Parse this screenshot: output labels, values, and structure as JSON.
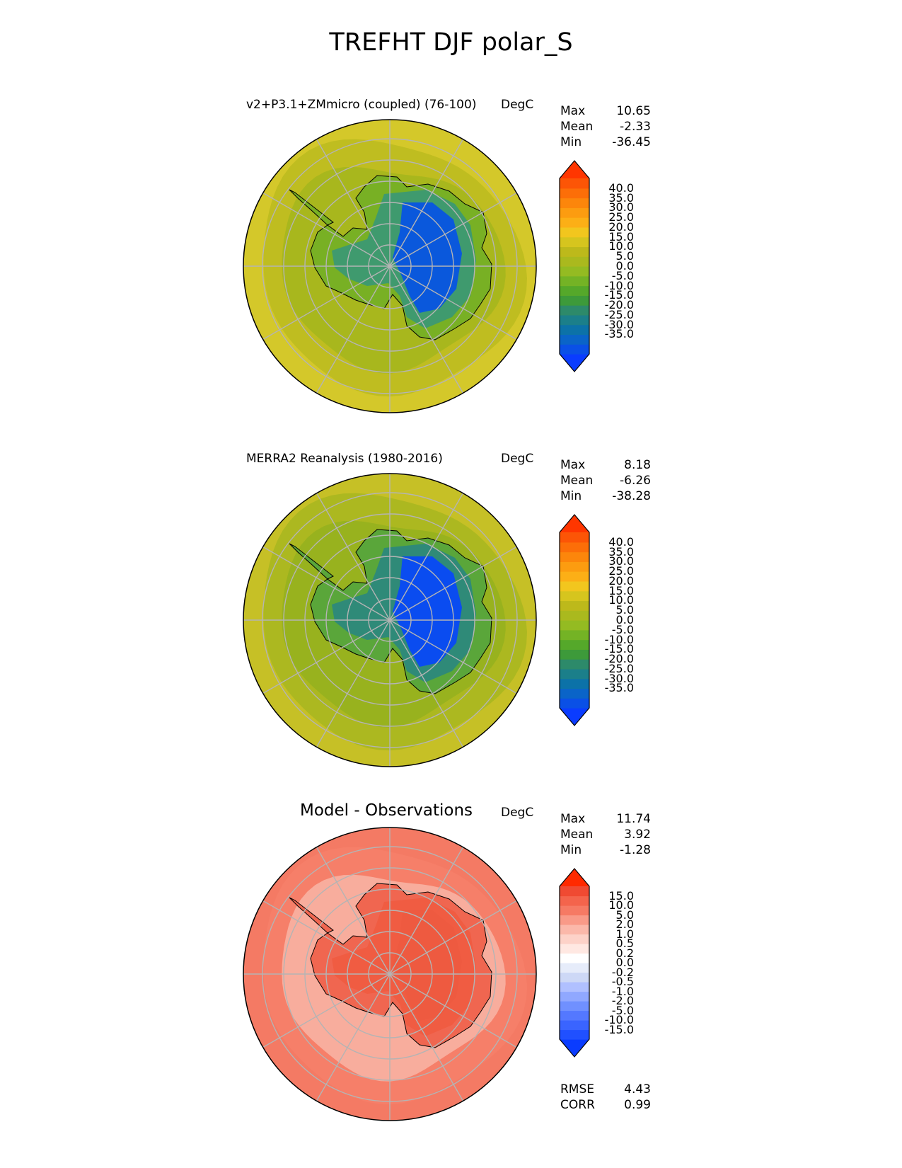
{
  "figure_title": "TREFHT DJF polar_S",
  "panels": [
    {
      "title": "v2+P3.1+ZMmicro (coupled) (76-100)",
      "units": "DegC",
      "stats": {
        "max_label": "Max",
        "max": "10.65",
        "mean_label": "Mean",
        "mean": "-2.33",
        "min_label": "Min",
        "min": "-36.45"
      },
      "colorbar": {
        "colors": [
          "#0a3cff",
          "#0a50e6",
          "#0a64c8",
          "#0c72a8",
          "#1b7f8a",
          "#2d8a6a",
          "#3d9a3a",
          "#55a82a",
          "#74b325",
          "#94bb22",
          "#aab91e",
          "#bdb91b",
          "#d6c51e",
          "#f2c61e",
          "#fcaf16",
          "#fc9c10",
          "#fc860b",
          "#fc6e08",
          "#fc5506",
          "#ff3600"
        ],
        "ticks": [
          "40.0",
          "35.0",
          "30.0",
          "25.0",
          "20.0",
          "15.0",
          "10.0",
          "5.0",
          "0.0",
          "-5.0",
          "-10.0",
          "-15.0",
          "-20.0",
          "-25.0",
          "-30.0",
          "-35.0"
        ]
      },
      "map": {
        "ocean_outer": "#d4c82a",
        "ocean_mid": "#bfbd20",
        "sea_ice": "#a8b71d",
        "coast_land": "#78b024",
        "interior_mid": "#3f9a6e",
        "interior_high": "#0a58dc"
      }
    },
    {
      "title": "MERRA2 Reanalysis (1980-2016)",
      "units": "DegC",
      "stats": {
        "max_label": "Max",
        "max": "8.18",
        "mean_label": "Mean",
        "mean": "-6.26",
        "min_label": "Min",
        "min": "-38.28"
      },
      "colorbar": {
        "colors": [
          "#0a3cff",
          "#0a50e6",
          "#0a64c8",
          "#0c72a8",
          "#1b7f8a",
          "#2d8a6a",
          "#3d9a3a",
          "#55a82a",
          "#74b325",
          "#94bb22",
          "#aab91e",
          "#bdb91b",
          "#d6c51e",
          "#f2c61e",
          "#fcaf16",
          "#fc9c10",
          "#fc860b",
          "#fc6e08",
          "#fc5506",
          "#ff3600"
        ],
        "ticks": [
          "40.0",
          "35.0",
          "30.0",
          "25.0",
          "20.0",
          "15.0",
          "10.0",
          "5.0",
          "0.0",
          "-5.0",
          "-10.0",
          "-15.0",
          "-20.0",
          "-25.0",
          "-30.0",
          "-35.0"
        ]
      },
      "map": {
        "ocean_outer": "#c6c026",
        "ocean_mid": "#acb820",
        "sea_ice": "#98b21e",
        "coast_land": "#5aa63a",
        "interior_mid": "#2f8a78",
        "interior_high": "#0a4cf0"
      }
    },
    {
      "title": "Model - Observations",
      "units": "DegC",
      "stats": {
        "max_label": "Max",
        "max": "11.74",
        "mean_label": "Mean",
        "mean": "3.92",
        "min_label": "Min",
        "min": "-1.28"
      },
      "colorbar": {
        "colors": [
          "#0a3cff",
          "#2050ff",
          "#3a64ff",
          "#5478ff",
          "#7090ff",
          "#90a8ff",
          "#b0c0ff",
          "#cdd8f6",
          "#e6ecfa",
          "#ffffff",
          "#ffe8e2",
          "#fdd2c8",
          "#fbb8aa",
          "#f99a88",
          "#f67a64",
          "#f4644c",
          "#f04a32",
          "#ff2a00"
        ],
        "ticks": [
          "15.0",
          "10.0",
          "5.0",
          "2.0",
          "1.0",
          "0.5",
          "0.2",
          "0.0",
          "-0.2",
          "-0.5",
          "-1.0",
          "-2.0",
          "-5.0",
          "-10.0",
          "-15.0"
        ]
      },
      "map": {
        "ocean_outer": "#f47a64",
        "ocean_mid": "#f67f69",
        "sea_ice": "#f8ad9d",
        "coast_land": "#f06650",
        "interior_mid": "#f05c42",
        "interior_high": "#ee5a40"
      },
      "score": {
        "rmse_label": "RMSE",
        "rmse": "4.43",
        "corr_label": "CORR",
        "corr": "0.99"
      }
    }
  ]
}
